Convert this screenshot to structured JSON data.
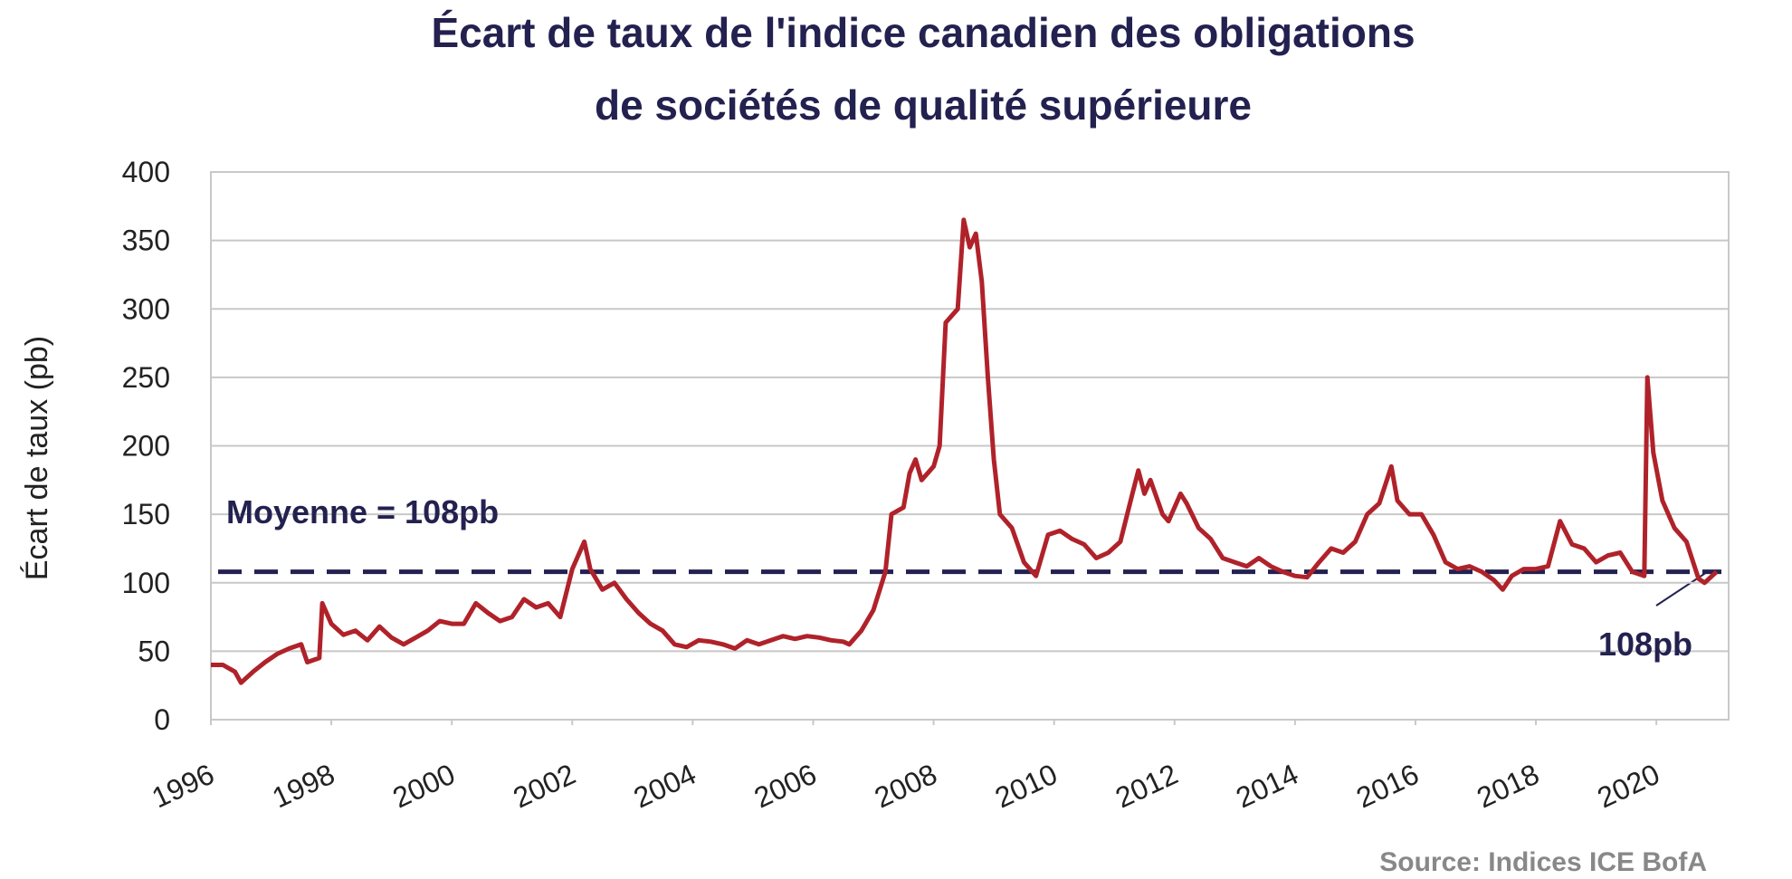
{
  "chart_data": {
    "type": "line",
    "title": [
      "Écart de taux de l'indice canadien des obligations",
      "de sociétés de qualité supérieure"
    ],
    "y_label": "Écart de taux (pb)",
    "source": "Source: Indices ICE BofA",
    "mean": {
      "value": 108,
      "label": "Moyenne = 108pb",
      "color": "#23214f"
    },
    "end_label": "108pb",
    "x": [
      1996.0,
      1996.2,
      1996.4,
      1996.5,
      1996.7,
      1996.9,
      1997.1,
      1997.3,
      1997.5,
      1997.6,
      1997.8,
      1997.85,
      1998.0,
      1998.2,
      1998.4,
      1998.6,
      1998.8,
      1999.0,
      1999.2,
      1999.4,
      1999.6,
      1999.8,
      2000.0,
      2000.2,
      2000.4,
      2000.6,
      2000.8,
      2001.0,
      2001.2,
      2001.4,
      2001.6,
      2001.8,
      2002.0,
      2002.2,
      2002.3,
      2002.5,
      2002.7,
      2002.9,
      2003.1,
      2003.3,
      2003.5,
      2003.7,
      2003.9,
      2004.1,
      2004.3,
      2004.5,
      2004.7,
      2004.9,
      2005.1,
      2005.3,
      2005.5,
      2005.7,
      2005.9,
      2006.1,
      2006.3,
      2006.5,
      2006.6,
      2006.8,
      2007.0,
      2007.2,
      2007.3,
      2007.5,
      2007.6,
      2007.7,
      2007.8,
      2008.0,
      2008.1,
      2008.2,
      2008.4,
      2008.5,
      2008.6,
      2008.7,
      2008.8,
      2008.9,
      2009.0,
      2009.1,
      2009.3,
      2009.5,
      2009.7,
      2009.9,
      2010.1,
      2010.3,
      2010.5,
      2010.7,
      2010.9,
      2011.1,
      2011.3,
      2011.4,
      2011.5,
      2011.6,
      2011.8,
      2011.9,
      2012.1,
      2012.2,
      2012.4,
      2012.6,
      2012.8,
      2013.0,
      2013.2,
      2013.4,
      2013.6,
      2013.8,
      2014.0,
      2014.2,
      2014.4,
      2014.6,
      2014.8,
      2015.0,
      2015.2,
      2015.4,
      2015.6,
      2015.7,
      2015.9,
      2016.1,
      2016.3,
      2016.5,
      2016.7,
      2016.9,
      2017.1,
      2017.3,
      2017.45,
      2017.6,
      2017.8,
      2018.0,
      2018.2,
      2018.4,
      2018.6,
      2018.8,
      2019.0,
      2019.2,
      2019.4,
      2019.6,
      2019.8,
      2019.85,
      2019.95,
      2020.1,
      2020.3,
      2020.5,
      2020.7,
      2020.8,
      2021.0
    ],
    "series": [
      {
        "color": "#b0222a",
        "values": [
          40,
          40,
          35,
          27,
          35,
          42,
          48,
          52,
          55,
          42,
          45,
          85,
          70,
          62,
          65,
          58,
          68,
          60,
          55,
          60,
          65,
          72,
          70,
          70,
          85,
          78,
          72,
          75,
          88,
          82,
          85,
          75,
          110,
          130,
          110,
          95,
          100,
          88,
          78,
          70,
          65,
          55,
          53,
          58,
          57,
          55,
          52,
          58,
          55,
          58,
          61,
          59,
          61,
          60,
          58,
          57,
          55,
          65,
          80,
          108,
          150,
          155,
          180,
          190,
          175,
          185,
          200,
          290,
          300,
          365,
          345,
          355,
          320,
          250,
          190,
          150,
          140,
          115,
          105,
          135,
          138,
          132,
          128,
          118,
          122,
          130,
          165,
          182,
          165,
          175,
          150,
          145,
          165,
          158,
          140,
          132,
          118,
          115,
          112,
          118,
          112,
          108,
          105,
          104,
          115,
          125,
          122,
          130,
          150,
          158,
          185,
          160,
          150,
          150,
          135,
          115,
          110,
          112,
          108,
          102,
          95,
          105,
          110,
          110,
          112,
          145,
          128,
          125,
          115,
          120,
          122,
          108,
          105,
          250,
          195,
          160,
          140,
          130,
          103,
          100,
          108
        ]
      }
    ],
    "xlim": [
      1996,
      2021.2
    ],
    "xticks": [
      1996,
      1998,
      2000,
      2002,
      2004,
      2006,
      2008,
      2010,
      2012,
      2014,
      2016,
      2018,
      2020
    ],
    "ylim": [
      0,
      400
    ],
    "yticks": [
      0,
      50,
      100,
      150,
      200,
      250,
      300,
      350,
      400
    ],
    "grid": true
  }
}
